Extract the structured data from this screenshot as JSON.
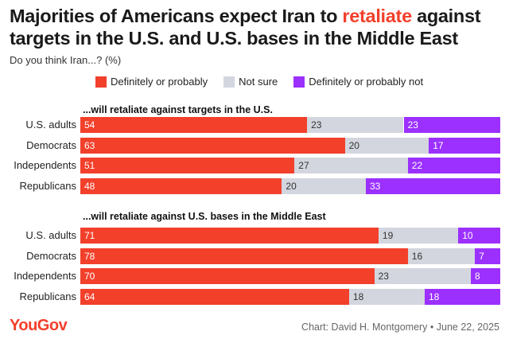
{
  "title": {
    "before": "Majorities of Americans expect Iran to ",
    "accent": "retaliate",
    "after": " against targets in the U.S. and U.S. bases in the Middle East"
  },
  "subtitle": "Do you think Iran...? (%)",
  "colors": {
    "accent": "#f2402b",
    "positive": "#f2402b",
    "unsure": "#d3d6de",
    "negative": "#9b30ff"
  },
  "chart_data": {
    "type": "bar",
    "orientation": "horizontal",
    "stacked": true,
    "legend": [
      "Definitely or probably",
      "Not sure",
      "Definitely or probably not"
    ],
    "legend_position": "top",
    "xlim": [
      0,
      100
    ],
    "panels": [
      {
        "title": "...will retaliate against targets in the U.S.",
        "categories": [
          "U.S. adults",
          "Democrats",
          "Independents",
          "Republicans"
        ],
        "series": [
          {
            "name": "Definitely or probably",
            "values": [
              54,
              63,
              51,
              48
            ]
          },
          {
            "name": "Not sure",
            "values": [
              23,
              20,
              27,
              20
            ]
          },
          {
            "name": "Definitely or probably not",
            "values": [
              23,
              17,
              22,
              33
            ]
          }
        ]
      },
      {
        "title": "...will retaliate against U.S. bases in the Middle East",
        "categories": [
          "U.S. adults",
          "Democrats",
          "Independents",
          "Republicans"
        ],
        "series": [
          {
            "name": "Definitely or probably",
            "values": [
              71,
              78,
              70,
              64
            ]
          },
          {
            "name": "Not sure",
            "values": [
              19,
              16,
              23,
              18
            ]
          },
          {
            "name": "Definitely or probably not",
            "values": [
              10,
              7,
              8,
              18
            ]
          }
        ]
      }
    ]
  },
  "footer": {
    "logo": "YouGov",
    "credit": "Chart: David H. Montgomery • June 22, 2025"
  }
}
